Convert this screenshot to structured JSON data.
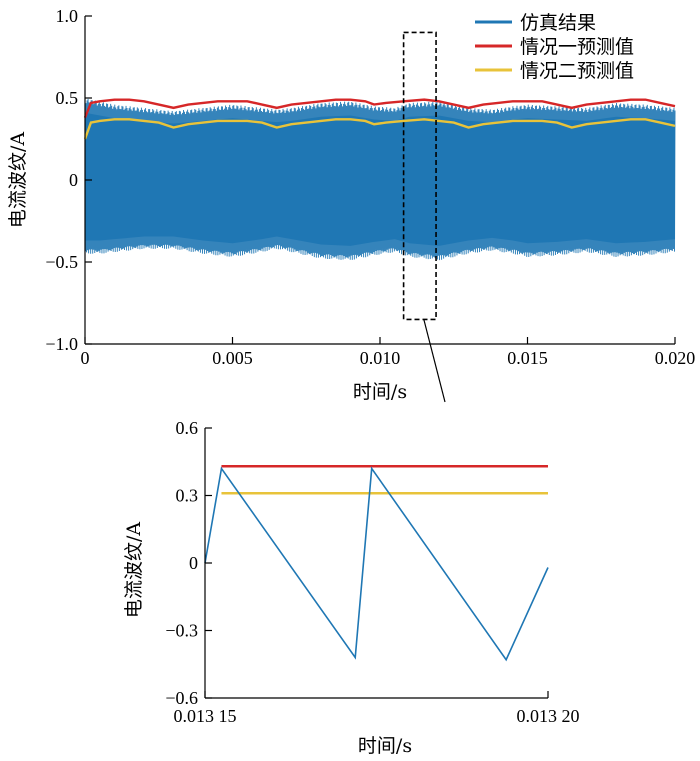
{
  "chart_data": [
    {
      "type": "line",
      "xlabel": "时间/s",
      "ylabel": "电流波纹/A",
      "xlim": [
        0,
        0.02
      ],
      "ylim": [
        -1.0,
        1.0
      ],
      "xticks": [
        0,
        0.005,
        0.01,
        0.015,
        0.02
      ],
      "xtick_labels": [
        "0",
        "0.005",
        "0.010",
        "0.015",
        "0.020"
      ],
      "yticks": [
        -1.0,
        -0.5,
        0,
        0.5,
        1.0
      ],
      "ytick_labels": [
        "−1.0",
        "−0.5",
        "0",
        "0.5",
        "1.0"
      ],
      "legend_position": "top-right",
      "zoom_box": {
        "x": [
          0.0108,
          0.0119
        ],
        "y": [
          -0.85,
          0.9
        ]
      },
      "series": [
        {
          "name": "仿真结果",
          "color": "#1f77b4",
          "kind": "dense_band",
          "x": [
            0,
            0.0005,
            0.001,
            0.002,
            0.003,
            0.004,
            0.005,
            0.006,
            0.0065,
            0.007,
            0.008,
            0.009,
            0.0098,
            0.0105,
            0.011,
            0.012,
            0.013,
            0.0138,
            0.0145,
            0.015,
            0.016,
            0.017,
            0.018,
            0.019,
            0.02
          ],
          "upper": [
            0.5,
            0.48,
            0.46,
            0.44,
            0.42,
            0.44,
            0.46,
            0.44,
            0.43,
            0.44,
            0.47,
            0.48,
            0.45,
            0.44,
            0.47,
            0.48,
            0.44,
            0.43,
            0.45,
            0.46,
            0.45,
            0.44,
            0.47,
            0.46,
            0.44
          ],
          "lower": [
            -0.45,
            -0.45,
            -0.44,
            -0.42,
            -0.42,
            -0.45,
            -0.47,
            -0.44,
            -0.42,
            -0.44,
            -0.48,
            -0.49,
            -0.46,
            -0.44,
            -0.47,
            -0.49,
            -0.45,
            -0.43,
            -0.45,
            -0.47,
            -0.46,
            -0.44,
            -0.47,
            -0.46,
            -0.44
          ]
        },
        {
          "name": "情况一预测值",
          "color": "#d62728",
          "x": [
            0,
            0.0002,
            0.0005,
            0.001,
            0.0015,
            0.002,
            0.0025,
            0.003,
            0.0035,
            0.004,
            0.0045,
            0.005,
            0.0055,
            0.006,
            0.0065,
            0.007,
            0.0075,
            0.008,
            0.0085,
            0.009,
            0.0095,
            0.0098,
            0.0102,
            0.0108,
            0.0115,
            0.012,
            0.0125,
            0.013,
            0.0135,
            0.014,
            0.0145,
            0.015,
            0.0155,
            0.016,
            0.0165,
            0.017,
            0.0175,
            0.018,
            0.0185,
            0.019,
            0.0195,
            0.02
          ],
          "y": [
            0.38,
            0.47,
            0.48,
            0.49,
            0.49,
            0.48,
            0.46,
            0.44,
            0.46,
            0.47,
            0.48,
            0.48,
            0.48,
            0.46,
            0.44,
            0.46,
            0.47,
            0.48,
            0.49,
            0.49,
            0.48,
            0.46,
            0.47,
            0.48,
            0.49,
            0.48,
            0.46,
            0.44,
            0.46,
            0.47,
            0.48,
            0.48,
            0.48,
            0.46,
            0.44,
            0.46,
            0.47,
            0.48,
            0.49,
            0.49,
            0.47,
            0.45
          ]
        },
        {
          "name": "情况二预测值",
          "color": "#e8c33a",
          "x": [
            0,
            0.0002,
            0.0005,
            0.001,
            0.0015,
            0.002,
            0.0025,
            0.003,
            0.0035,
            0.004,
            0.0045,
            0.005,
            0.0055,
            0.006,
            0.0065,
            0.007,
            0.0075,
            0.008,
            0.0085,
            0.009,
            0.0095,
            0.0098,
            0.0102,
            0.0108,
            0.0115,
            0.012,
            0.0125,
            0.013,
            0.0135,
            0.014,
            0.0145,
            0.015,
            0.0155,
            0.016,
            0.0165,
            0.017,
            0.0175,
            0.018,
            0.0185,
            0.019,
            0.0195,
            0.02
          ],
          "y": [
            0.25,
            0.35,
            0.36,
            0.37,
            0.37,
            0.36,
            0.35,
            0.32,
            0.34,
            0.35,
            0.36,
            0.36,
            0.36,
            0.35,
            0.32,
            0.34,
            0.35,
            0.36,
            0.37,
            0.37,
            0.36,
            0.34,
            0.35,
            0.36,
            0.37,
            0.36,
            0.35,
            0.32,
            0.34,
            0.35,
            0.36,
            0.36,
            0.36,
            0.35,
            0.32,
            0.34,
            0.35,
            0.36,
            0.37,
            0.37,
            0.35,
            0.33
          ]
        }
      ]
    },
    {
      "type": "line",
      "xlabel": "时间/s",
      "ylabel": "电流波纹/A",
      "xlim": [
        0.01315,
        0.0132
      ],
      "ylim": [
        -0.6,
        0.6
      ],
      "xticks": [
        0.01315,
        0.0132
      ],
      "xtick_labels": [
        "0.013 15",
        "0.013 20"
      ],
      "yticks": [
        -0.6,
        -0.3,
        0,
        0.3,
        0.6
      ],
      "ytick_labels": [
        "−0.6",
        "−0.3",
        "0",
        "0.3",
        "0.6"
      ],
      "series": [
        {
          "name": "仿真结果",
          "color": "#1f77b4",
          "x": [
            0.01315,
            0.0131524,
            0.0131719,
            0.0131743,
            0.0131939,
            0.0132
          ],
          "y": [
            0.0,
            0.42,
            -0.42,
            0.42,
            -0.43,
            -0.02
          ]
        },
        {
          "name": "情况一预测值",
          "color": "#d62728",
          "x": [
            0.0131524,
            0.0132
          ],
          "y": [
            0.43,
            0.43
          ]
        },
        {
          "name": "情况二预测值",
          "color": "#e8c33a",
          "x": [
            0.0131524,
            0.0132
          ],
          "y": [
            0.31,
            0.31
          ]
        }
      ]
    }
  ]
}
